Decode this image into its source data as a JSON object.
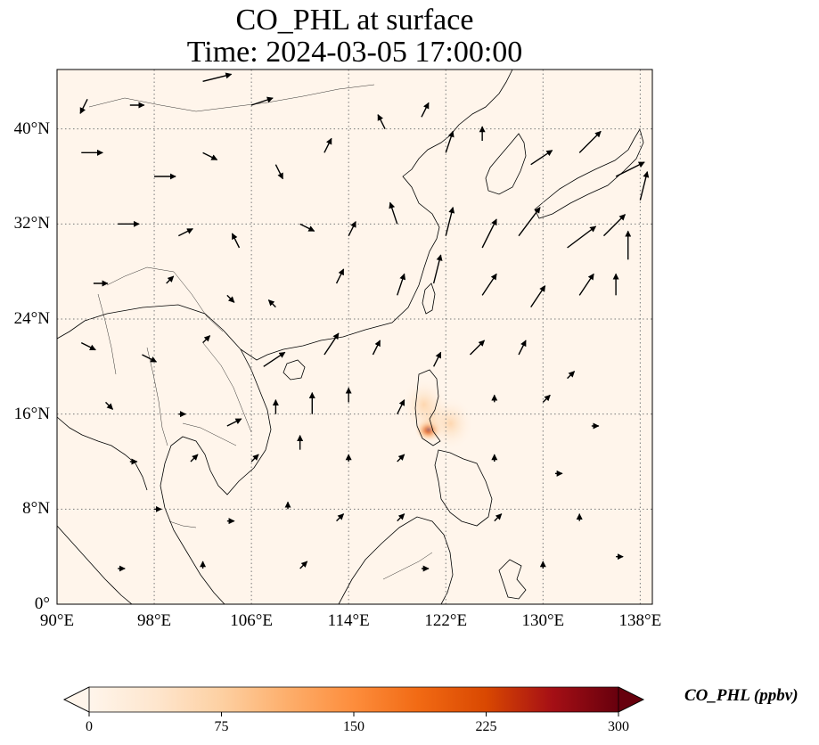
{
  "title": {
    "line1": "CO_PHL at surface",
    "line2": "Time: 2024-03-05 17:00:00"
  },
  "map": {
    "projection": "PlateCarree",
    "lon_range": [
      90,
      139
    ],
    "lat_range": [
      0,
      45
    ],
    "gridlines": true,
    "coastlines": true,
    "country_borders": true,
    "background_color": "#fff5eb",
    "lat_ticks": [
      {
        "value": 0,
        "label": "0°"
      },
      {
        "value": 8,
        "label": "8°N"
      },
      {
        "value": 16,
        "label": "16°N"
      },
      {
        "value": 24,
        "label": "24°N"
      },
      {
        "value": 32,
        "label": "32°N"
      },
      {
        "value": 40,
        "label": "40°N"
      }
    ],
    "lon_ticks": [
      {
        "value": 90,
        "label": "90°E"
      },
      {
        "value": 98,
        "label": "98°E"
      },
      {
        "value": 106,
        "label": "106°E"
      },
      {
        "value": 114,
        "label": "114°E"
      },
      {
        "value": 122,
        "label": "122°E"
      },
      {
        "value": 130,
        "label": "130°E"
      },
      {
        "value": 138,
        "label": "138°E"
      }
    ],
    "plume": [
      {
        "lon": 120.6,
        "lat": 14.7,
        "value": 240
      },
      {
        "lon": 120.9,
        "lat": 15.6,
        "value": 60
      },
      {
        "lon": 120.2,
        "lat": 16.8,
        "value": 30
      },
      {
        "lon": 122.4,
        "lat": 15.2,
        "value": 20
      }
    ],
    "wind_vectors": [
      {
        "lon": 92.5,
        "lat": 42.5,
        "u": -1,
        "v": -2
      },
      {
        "lon": 96,
        "lat": 42,
        "u": 2,
        "v": 0
      },
      {
        "lon": 102,
        "lat": 44,
        "u": 4,
        "v": 1
      },
      {
        "lon": 106,
        "lat": 42,
        "u": 3,
        "v": 1
      },
      {
        "lon": 92,
        "lat": 38,
        "u": 3,
        "v": 0
      },
      {
        "lon": 98,
        "lat": 36,
        "u": 3,
        "v": 0
      },
      {
        "lon": 102,
        "lat": 38,
        "u": 2,
        "v": -1
      },
      {
        "lon": 108,
        "lat": 37,
        "u": 1,
        "v": -2
      },
      {
        "lon": 112,
        "lat": 38,
        "u": 1,
        "v": 2
      },
      {
        "lon": 117,
        "lat": 40,
        "u": -1,
        "v": 2
      },
      {
        "lon": 120,
        "lat": 41,
        "u": 1,
        "v": 2
      },
      {
        "lon": 122,
        "lat": 38,
        "u": 1,
        "v": 3
      },
      {
        "lon": 125,
        "lat": 39,
        "u": 0,
        "v": 2
      },
      {
        "lon": 129,
        "lat": 37,
        "u": 3,
        "v": 2
      },
      {
        "lon": 133,
        "lat": 38,
        "u": 3,
        "v": 3
      },
      {
        "lon": 136,
        "lat": 36,
        "u": 4,
        "v": 2
      },
      {
        "lon": 138,
        "lat": 34,
        "u": 1,
        "v": 4
      },
      {
        "lon": 95,
        "lat": 32,
        "u": 3,
        "v": 0
      },
      {
        "lon": 100,
        "lat": 31,
        "u": 2,
        "v": 1
      },
      {
        "lon": 105,
        "lat": 30,
        "u": -1,
        "v": 2
      },
      {
        "lon": 110,
        "lat": 32,
        "u": 2,
        "v": -1
      },
      {
        "lon": 114,
        "lat": 31,
        "u": 1,
        "v": 2
      },
      {
        "lon": 118,
        "lat": 32,
        "u": -1,
        "v": 3
      },
      {
        "lon": 122,
        "lat": 31,
        "u": 1,
        "v": 4
      },
      {
        "lon": 125,
        "lat": 30,
        "u": 2,
        "v": 4
      },
      {
        "lon": 128,
        "lat": 31,
        "u": 3,
        "v": 4
      },
      {
        "lon": 132,
        "lat": 30,
        "u": 4,
        "v": 3
      },
      {
        "lon": 135,
        "lat": 31,
        "u": 3,
        "v": 3
      },
      {
        "lon": 137,
        "lat": 29,
        "u": 0,
        "v": 4
      },
      {
        "lon": 93,
        "lat": 27,
        "u": 2,
        "v": 0
      },
      {
        "lon": 99,
        "lat": 27,
        "u": 1,
        "v": 1
      },
      {
        "lon": 104,
        "lat": 26,
        "u": 1,
        "v": -1
      },
      {
        "lon": 108,
        "lat": 25,
        "u": -1,
        "v": 1
      },
      {
        "lon": 113,
        "lat": 27,
        "u": 1,
        "v": 2
      },
      {
        "lon": 118,
        "lat": 26,
        "u": 1,
        "v": 3
      },
      {
        "lon": 121,
        "lat": 27,
        "u": 1,
        "v": 4
      },
      {
        "lon": 125,
        "lat": 26,
        "u": 2,
        "v": 3
      },
      {
        "lon": 129,
        "lat": 25,
        "u": 2,
        "v": 3
      },
      {
        "lon": 133,
        "lat": 26,
        "u": 2,
        "v": 3
      },
      {
        "lon": 136,
        "lat": 26,
        "u": 0,
        "v": 3
      },
      {
        "lon": 92,
        "lat": 22,
        "u": 2,
        "v": -1
      },
      {
        "lon": 97,
        "lat": 21,
        "u": 2,
        "v": -1
      },
      {
        "lon": 102,
        "lat": 22,
        "u": 1,
        "v": 1
      },
      {
        "lon": 107,
        "lat": 20,
        "u": 3,
        "v": 2
      },
      {
        "lon": 112,
        "lat": 21,
        "u": 2,
        "v": 3
      },
      {
        "lon": 116,
        "lat": 21,
        "u": 1,
        "v": 2
      },
      {
        "lon": 121,
        "lat": 20,
        "u": 1,
        "v": 2
      },
      {
        "lon": 124,
        "lat": 21,
        "u": 2,
        "v": 2
      },
      {
        "lon": 128,
        "lat": 21,
        "u": 1,
        "v": 2
      },
      {
        "lon": 132,
        "lat": 19,
        "u": 1,
        "v": 1
      },
      {
        "lon": 94,
        "lat": 17,
        "u": 1,
        "v": -1
      },
      {
        "lon": 100,
        "lat": 16,
        "u": 1,
        "v": 0
      },
      {
        "lon": 104,
        "lat": 15,
        "u": 2,
        "v": 1
      },
      {
        "lon": 108,
        "lat": 16,
        "u": 0,
        "v": 2
      },
      {
        "lon": 111,
        "lat": 16,
        "u": 0,
        "v": 3
      },
      {
        "lon": 114,
        "lat": 17,
        "u": 0,
        "v": 2
      },
      {
        "lon": 118,
        "lat": 16,
        "u": 1,
        "v": 2
      },
      {
        "lon": 126,
        "lat": 17,
        "u": 0,
        "v": 1
      },
      {
        "lon": 130,
        "lat": 17,
        "u": 1,
        "v": 1
      },
      {
        "lon": 134,
        "lat": 15,
        "u": 1,
        "v": 0
      },
      {
        "lon": 96,
        "lat": 12,
        "u": 1,
        "v": 0
      },
      {
        "lon": 101,
        "lat": 12,
        "u": 1,
        "v": 1
      },
      {
        "lon": 106,
        "lat": 12,
        "u": 1,
        "v": 1
      },
      {
        "lon": 110,
        "lat": 13,
        "u": 0,
        "v": 2
      },
      {
        "lon": 114,
        "lat": 12,
        "u": 0,
        "v": 1
      },
      {
        "lon": 118,
        "lat": 12,
        "u": 1,
        "v": 1
      },
      {
        "lon": 126,
        "lat": 12,
        "u": 0,
        "v": 1
      },
      {
        "lon": 131,
        "lat": 11,
        "u": 1,
        "v": 0
      },
      {
        "lon": 98,
        "lat": 8,
        "u": 1,
        "v": 0
      },
      {
        "lon": 104,
        "lat": 7,
        "u": 1,
        "v": 0
      },
      {
        "lon": 109,
        "lat": 8,
        "u": 0,
        "v": 1
      },
      {
        "lon": 113,
        "lat": 7,
        "u": 1,
        "v": 1
      },
      {
        "lon": 118,
        "lat": 7,
        "u": 1,
        "v": 1
      },
      {
        "lon": 126,
        "lat": 7,
        "u": 1,
        "v": 1
      },
      {
        "lon": 133,
        "lat": 7,
        "u": 0,
        "v": 1
      },
      {
        "lon": 95,
        "lat": 3,
        "u": 1,
        "v": 0
      },
      {
        "lon": 102,
        "lat": 3,
        "u": 0,
        "v": 1
      },
      {
        "lon": 110,
        "lat": 3,
        "u": 1,
        "v": 1
      },
      {
        "lon": 120,
        "lat": 3,
        "u": 1,
        "v": 0
      },
      {
        "lon": 130,
        "lat": 3,
        "u": 0,
        "v": 1
      },
      {
        "lon": 136,
        "lat": 4,
        "u": 1,
        "v": 0
      }
    ]
  },
  "colorbar": {
    "label": "CO_PHL (ppbv)",
    "min": 0,
    "max": 300,
    "extend": "both",
    "cmap": "OrRd",
    "colors": [
      "#fff5eb",
      "#fee6ce",
      "#fdd0a2",
      "#fdae6b",
      "#fd8d3c",
      "#f16913",
      "#d94801",
      "#a50f15",
      "#67000d"
    ],
    "ticks": [
      {
        "value": 0,
        "label": "0"
      },
      {
        "value": 75,
        "label": "75"
      },
      {
        "value": 150,
        "label": "150"
      },
      {
        "value": 225,
        "label": "225"
      },
      {
        "value": 300,
        "label": "300"
      }
    ]
  }
}
